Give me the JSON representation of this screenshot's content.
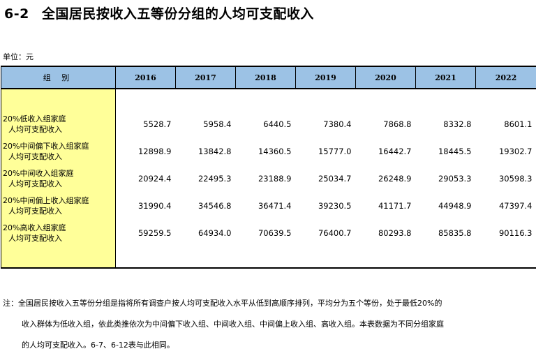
{
  "title": {
    "code": "6-2",
    "text": "全国居民按收入五等份分组的人均可支配收入"
  },
  "unit": "单位：元",
  "table": {
    "header_group": "组 别",
    "years": [
      "2016",
      "2017",
      "2018",
      "2019",
      "2020",
      "2021",
      "2022"
    ],
    "rows": [
      {
        "line1": "20%低收入组家庭",
        "line2": "人均可支配收入",
        "values": [
          "5528.7",
          "5958.4",
          "6440.5",
          "7380.4",
          "7868.8",
          "8332.8",
          "8601.1"
        ]
      },
      {
        "line1": "20%中间偏下收入组家庭",
        "line2": "人均可支配收入",
        "values": [
          "12898.9",
          "13842.8",
          "14360.5",
          "15777.0",
          "16442.7",
          "18445.5",
          "19302.7"
        ]
      },
      {
        "line1": "20%中间收入组家庭",
        "line2": "人均可支配收入",
        "values": [
          "20924.4",
          "22495.3",
          "23188.9",
          "25034.7",
          "26248.9",
          "29053.3",
          "30598.3"
        ]
      },
      {
        "line1": "20%中间偏上收入组家庭",
        "line2": "人均可支配收入",
        "values": [
          "31990.4",
          "34546.8",
          "36471.4",
          "39230.5",
          "41171.7",
          "44948.9",
          "47397.4"
        ]
      },
      {
        "line1": "20%高收入组家庭",
        "line2": "人均可支配收入",
        "values": [
          "59259.5",
          "64934.0",
          "70639.5",
          "76400.7",
          "80293.8",
          "85835.8",
          "90116.3"
        ]
      }
    ]
  },
  "notes": {
    "line1": "注：全国居民按收入五等份分组是指将所有调查户按人均可支配收入水平从低到高顺序排列，平均分为五个等份，处于最低20%的",
    "line2": "收入群体为低收入组，依此类推依次为中间偏下收入组、中间收入组、中间偏上收入组、高收入组。本表数据为不同分组家庭",
    "line3": "的人均可支配收入。6-7、6-12表与此相同。"
  }
}
